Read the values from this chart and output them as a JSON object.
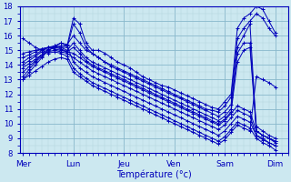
{
  "xlabel": "Température (°c)",
  "bg_color": "#cce8f0",
  "grid_minor_color": "#b0d0dc",
  "grid_major_color": "#88b8cc",
  "line_color": "#0000bb",
  "ylim": [
    8,
    18
  ],
  "yticks": [
    8,
    9,
    10,
    11,
    12,
    13,
    14,
    15,
    16,
    17,
    18
  ],
  "day_labels": [
    "Mer",
    "Lun",
    "Jeu",
    "Ven",
    "Sam",
    "Dim"
  ],
  "day_x": [
    0,
    8,
    16,
    24,
    32,
    40
  ],
  "xlim": [
    -0.5,
    42
  ],
  "lines": [
    [
      13.0,
      13.5,
      14.0,
      14.5,
      15.0,
      15.2,
      15.3,
      15.3,
      17.2,
      16.8,
      15.5,
      15.0,
      15.0,
      14.8,
      14.5,
      14.2,
      14.0,
      13.8,
      13.5,
      13.2,
      13.0,
      12.8,
      12.6,
      12.5,
      12.3,
      12.1,
      11.9,
      11.7,
      11.5,
      11.3,
      11.1,
      11.0,
      11.5,
      12.0,
      16.5,
      17.2,
      17.5,
      18.0,
      17.8,
      17.0,
      16.2
    ],
    [
      13.2,
      13.7,
      14.2,
      14.6,
      15.0,
      15.2,
      15.2,
      15.2,
      16.8,
      16.2,
      15.2,
      14.8,
      14.5,
      14.2,
      14.0,
      13.8,
      13.6,
      13.4,
      13.2,
      13.0,
      12.8,
      12.6,
      12.4,
      12.2,
      12.0,
      11.8,
      11.6,
      11.4,
      11.2,
      11.0,
      10.9,
      10.8,
      11.2,
      11.8,
      15.8,
      16.5,
      17.0,
      17.5,
      17.2,
      16.5,
      16.0
    ],
    [
      13.5,
      13.9,
      14.3,
      14.7,
      15.1,
      15.3,
      15.5,
      15.4,
      16.0,
      15.5,
      15.0,
      14.8,
      14.5,
      14.2,
      13.9,
      13.7,
      13.5,
      13.3,
      13.1,
      12.9,
      12.7,
      12.5,
      12.3,
      12.1,
      11.9,
      11.7,
      11.5,
      11.3,
      11.1,
      10.9,
      10.7,
      10.5,
      10.8,
      11.3,
      15.2,
      16.0,
      16.8,
      9.5,
      9.2,
      9.0,
      8.8
    ],
    [
      14.0,
      14.3,
      14.6,
      14.9,
      15.2,
      15.3,
      15.2,
      15.0,
      15.5,
      15.0,
      14.5,
      14.2,
      14.0,
      13.8,
      13.6,
      13.4,
      13.2,
      13.0,
      12.8,
      12.6,
      12.4,
      12.2,
      12.0,
      11.8,
      11.6,
      11.4,
      11.2,
      11.0,
      10.8,
      10.6,
      10.4,
      10.2,
      10.5,
      11.0,
      14.8,
      15.5,
      15.5,
      9.8,
      9.5,
      9.2,
      9.0
    ],
    [
      14.2,
      14.5,
      14.7,
      15.0,
      15.2,
      15.2,
      15.1,
      14.9,
      15.2,
      14.8,
      14.3,
      14.0,
      13.8,
      13.6,
      13.4,
      13.2,
      13.0,
      12.8,
      12.6,
      12.4,
      12.2,
      12.0,
      11.8,
      11.6,
      11.4,
      11.2,
      11.0,
      10.8,
      10.6,
      10.4,
      10.2,
      10.0,
      10.3,
      10.8,
      14.2,
      15.0,
      15.2,
      9.5,
      9.2,
      9.0,
      8.7
    ],
    [
      14.5,
      14.7,
      14.9,
      15.1,
      15.2,
      15.1,
      15.0,
      14.9,
      14.8,
      14.5,
      14.2,
      13.9,
      13.7,
      13.5,
      13.3,
      13.1,
      12.9,
      12.7,
      12.5,
      12.3,
      12.1,
      11.9,
      11.7,
      11.5,
      11.3,
      11.1,
      10.9,
      10.7,
      10.5,
      10.3,
      10.1,
      9.9,
      10.2,
      10.7,
      11.2,
      11.0,
      10.8,
      9.5,
      9.2,
      9.0,
      8.8
    ],
    [
      13.8,
      14.1,
      14.4,
      14.7,
      14.9,
      15.0,
      14.9,
      14.8,
      14.5,
      14.2,
      13.9,
      13.6,
      13.4,
      13.2,
      13.0,
      12.8,
      12.6,
      12.4,
      12.2,
      12.0,
      11.8,
      11.6,
      11.4,
      11.2,
      11.0,
      10.8,
      10.6,
      10.4,
      10.2,
      10.0,
      9.8,
      9.6,
      9.9,
      10.4,
      10.9,
      10.7,
      10.5,
      9.2,
      8.9,
      8.7,
      8.5
    ],
    [
      14.8,
      14.9,
      15.0,
      15.1,
      15.2,
      15.2,
      15.5,
      15.3,
      14.2,
      13.8,
      13.5,
      13.2,
      13.0,
      12.8,
      12.6,
      12.4,
      12.2,
      12.0,
      11.8,
      11.6,
      11.4,
      11.2,
      11.0,
      10.8,
      10.6,
      10.4,
      10.2,
      10.0,
      9.8,
      9.6,
      9.4,
      9.2,
      9.5,
      10.0,
      10.5,
      10.3,
      10.1,
      9.2,
      9.0,
      8.7,
      8.5
    ],
    [
      15.8,
      15.5,
      15.2,
      15.0,
      14.8,
      14.9,
      14.8,
      14.6,
      13.8,
      13.4,
      13.1,
      12.8,
      12.6,
      12.4,
      12.2,
      12.0,
      11.8,
      11.6,
      11.4,
      11.2,
      11.0,
      10.8,
      10.6,
      10.4,
      10.2,
      10.0,
      9.8,
      9.6,
      9.4,
      9.2,
      9.0,
      8.8,
      9.1,
      9.6,
      10.1,
      9.9,
      9.7,
      9.0,
      8.7,
      8.5,
      8.2
    ],
    [
      13.0,
      13.3,
      13.6,
      13.9,
      14.2,
      14.4,
      14.5,
      14.4,
      13.5,
      13.2,
      12.9,
      12.6,
      12.4,
      12.2,
      12.0,
      11.8,
      11.6,
      11.4,
      11.2,
      11.0,
      10.8,
      10.6,
      10.4,
      10.2,
      10.0,
      9.8,
      9.6,
      9.4,
      9.2,
      9.0,
      8.8,
      8.6,
      8.9,
      9.4,
      9.9,
      9.7,
      9.5,
      13.2,
      13.0,
      12.8,
      12.5
    ]
  ]
}
